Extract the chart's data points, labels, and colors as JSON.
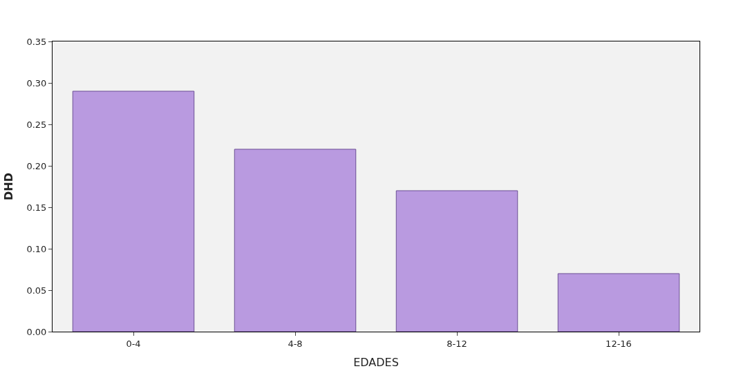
{
  "chart_data": {
    "type": "bar",
    "xlabel": "EDADES",
    "ylabel": "DHD",
    "categories": [
      "0-4",
      "4-8",
      "8-12",
      "12-16"
    ],
    "values": [
      0.29,
      0.22,
      0.17,
      0.07
    ],
    "color": "#b99ae0",
    "ylim": [
      0,
      0.35
    ],
    "yticks": [
      {
        "value": 0,
        "label": "0.00"
      },
      {
        "value": 0.05,
        "label": "0.05"
      },
      {
        "value": 0.1,
        "label": "0.10"
      },
      {
        "value": 0.15,
        "label": "0.15"
      },
      {
        "value": 0.2,
        "label": "0.20"
      },
      {
        "value": 0.25,
        "label": "0.25"
      },
      {
        "value": 0.3,
        "label": "0.30"
      },
      {
        "value": 0.35,
        "label": "0.35"
      }
    ],
    "grid": false
  }
}
